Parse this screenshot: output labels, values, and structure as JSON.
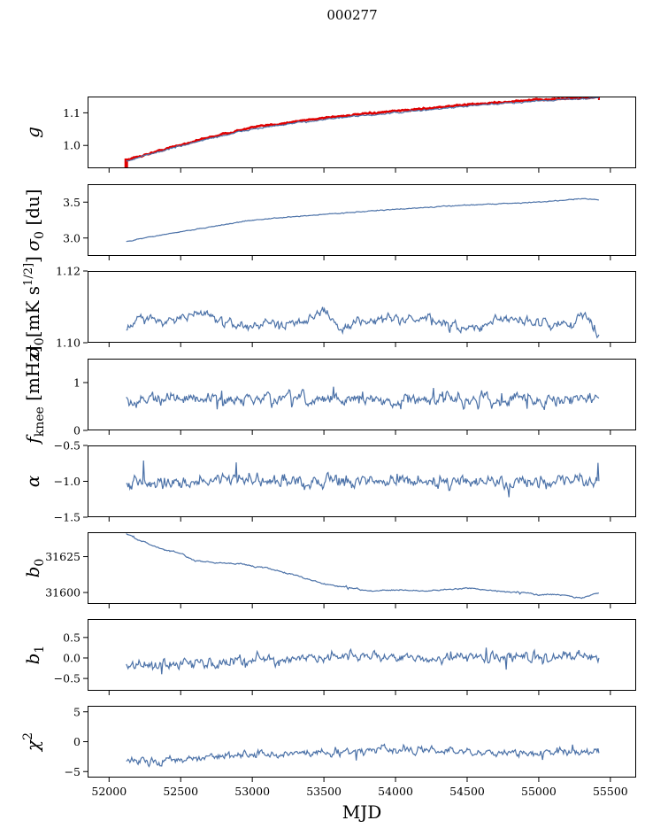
{
  "figure": {
    "title": "000277"
  },
  "colors": {
    "series": "#4c72a8",
    "reference": "#e00000",
    "axis": "#000000"
  },
  "chart_data": [
    {
      "type": "line",
      "panel": "g",
      "ylabel_tex": "g",
      "ylim": [
        0.93,
        1.15
      ],
      "yticks": [
        1.0,
        1.1
      ],
      "ytick_labels": [
        "1.0",
        "1.1"
      ],
      "series": [
        {
          "name": "g (red overlay)",
          "style": "reference",
          "x": [
            52120,
            52200,
            52400,
            52700,
            53000,
            53500,
            54000,
            54500,
            55000,
            55420
          ],
          "y": [
            0.955,
            0.965,
            0.99,
            1.025,
            1.055,
            1.085,
            1.105,
            1.125,
            1.14,
            1.148
          ],
          "noise": 0.002
        },
        {
          "name": "g",
          "style": "series",
          "x": [
            52120,
            52200,
            52400,
            52700,
            53000,
            53500,
            54000,
            54500,
            55000,
            55420
          ],
          "y": [
            0.952,
            0.962,
            0.987,
            1.021,
            1.05,
            1.08,
            1.1,
            1.12,
            1.137,
            1.146
          ],
          "noise": 0.002
        }
      ]
    },
    {
      "type": "line",
      "panel": "sigma0_du",
      "ylabel_tex": "σ0 [du]",
      "ylim": [
        2.75,
        3.75
      ],
      "yticks": [
        3.0,
        3.5
      ],
      "ytick_labels": [
        "3.0",
        "3.5"
      ],
      "series": [
        {
          "name": "σ0 [du]",
          "style": "series",
          "x": [
            52120,
            52300,
            52600,
            53000,
            53500,
            54000,
            54500,
            55000,
            55300,
            55420
          ],
          "y": [
            2.95,
            3.02,
            3.12,
            3.25,
            3.33,
            3.4,
            3.46,
            3.5,
            3.55,
            3.53
          ],
          "noise": 0.005
        }
      ]
    },
    {
      "type": "line",
      "panel": "sigma0_mK",
      "ylabel_tex": "σ0[mK s^1/2]",
      "ylim": [
        1.1,
        1.12
      ],
      "yticks": [
        1.1,
        1.12
      ],
      "ytick_labels": [
        "1.10",
        "1.12"
      ],
      "series": [
        {
          "name": "σ0 [mK s^1/2]",
          "style": "series",
          "x": [
            52120,
            52200,
            52400,
            52700,
            52800,
            53200,
            53500,
            53600,
            53800,
            54200,
            54500,
            54800,
            55000,
            55200,
            55300,
            55420
          ],
          "y": [
            1.1025,
            1.1075,
            1.106,
            1.1085,
            1.105,
            1.105,
            1.1085,
            1.104,
            1.1065,
            1.1065,
            1.1035,
            1.107,
            1.1055,
            1.105,
            1.108,
            1.1025
          ],
          "noise": 0.0012
        }
      ]
    },
    {
      "type": "line",
      "panel": "fknee",
      "ylabel_tex": "fknee [mHz]",
      "ylim": [
        0,
        1.5
      ],
      "yticks": [
        0,
        1
      ],
      "ytick_labels": [
        "0",
        "1"
      ],
      "series": [
        {
          "name": "fknee [mHz]",
          "style": "series",
          "x": [
            52120,
            55420
          ],
          "y": [
            0.65,
            0.65
          ],
          "noise": 0.11
        }
      ]
    },
    {
      "type": "line",
      "panel": "alpha",
      "ylabel_tex": "α",
      "ylim": [
        -1.5,
        -0.5
      ],
      "yticks": [
        -1.5,
        -1.0,
        -0.5
      ],
      "ytick_labels": [
        "−1.5",
        "−1.0",
        "−0.5"
      ],
      "series": [
        {
          "name": "α",
          "style": "series",
          "x": [
            52120,
            55420
          ],
          "y": [
            -1.0,
            -1.0
          ],
          "noise": 0.08
        }
      ]
    },
    {
      "type": "line",
      "panel": "b0",
      "ylabel_tex": "b0",
      "ylim": [
        31592,
        31642
      ],
      "yticks": [
        31600,
        31625
      ],
      "ytick_labels": [
        "31600",
        "31625"
      ],
      "series": [
        {
          "name": "b0",
          "style": "series",
          "x": [
            52120,
            52200,
            52350,
            52500,
            52600,
            52700,
            52900,
            53100,
            53300,
            53500,
            53700,
            53800,
            54000,
            54200,
            54500,
            54700,
            54900,
            55000,
            55100,
            55200,
            55300,
            55420
          ],
          "y": [
            31641,
            31637,
            31631,
            31627,
            31622,
            31621,
            31620,
            31617,
            31612,
            31606,
            31603,
            31601,
            31602,
            31601,
            31603,
            31601,
            31600,
            31598,
            31599,
            31598,
            31596,
            31600
          ],
          "noise": 0.4
        }
      ]
    },
    {
      "type": "line",
      "panel": "b1",
      "ylabel_tex": "b1",
      "ylim": [
        -0.8,
        0.95
      ],
      "yticks": [
        -0.5,
        0.0,
        0.5
      ],
      "ytick_labels": [
        "−0.5",
        "0.0",
        "0.5"
      ],
      "series": [
        {
          "name": "b1",
          "style": "series",
          "x": [
            52120,
            52300,
            52600,
            53000,
            53500,
            54000,
            54500,
            55000,
            55420
          ],
          "y": [
            -0.15,
            -0.22,
            -0.12,
            -0.05,
            0.0,
            0.03,
            0.0,
            0.03,
            0.05
          ],
          "noise": 0.11
        }
      ]
    },
    {
      "type": "line",
      "panel": "chi2",
      "ylabel_tex": "χ2",
      "ylim": [
        -6,
        6
      ],
      "yticks": [
        -5,
        0,
        5
      ],
      "ytick_labels": [
        "−5",
        "0",
        "5"
      ],
      "xlabel": "MJD",
      "xlim": [
        51850,
        55680
      ],
      "xticks": [
        52000,
        52500,
        53000,
        53500,
        54000,
        54500,
        55000,
        55500
      ],
      "xtick_labels": [
        "52000",
        "52500",
        "53000",
        "53500",
        "54000",
        "54500",
        "55000",
        "55500"
      ],
      "series": [
        {
          "name": "χ2",
          "style": "series",
          "x": [
            52120,
            52300,
            52600,
            53000,
            53500,
            54000,
            54500,
            55000,
            55420
          ],
          "y": [
            -3.2,
            -3.5,
            -2.6,
            -2.2,
            -1.8,
            -1.4,
            -1.6,
            -1.8,
            -1.6
          ],
          "noise": 0.55
        }
      ]
    }
  ]
}
